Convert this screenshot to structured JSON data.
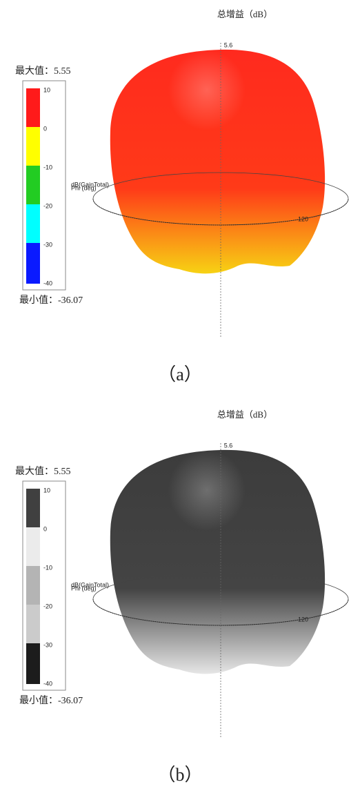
{
  "panels": [
    {
      "title": "总增益（dB）",
      "max_label": "最大值：5.55",
      "min_label": "最小值：-36.07",
      "colorbar_ticks": [
        10,
        0,
        -10,
        -20,
        -30,
        -40
      ],
      "segment_colors": [
        "#ff1a1a",
        "#ffff00",
        "#22cc22",
        "#00ffff",
        "#0a1aff"
      ],
      "pattern_colors": [
        "#ff2a1e",
        "#ff3a18",
        "#f7d214"
      ],
      "z_label": "5.6",
      "ring_label": "120",
      "overlap_labels": [
        "dB(GainTotal)",
        "Phi (deg)"
      ],
      "caption": "（a）"
    },
    {
      "title": "总增益（dB）",
      "max_label": "最大值：5.55",
      "min_label": "最小值：-36.07",
      "colorbar_ticks": [
        10,
        0,
        -10,
        -20,
        -30,
        -40
      ],
      "segment_colors": [
        "#404040",
        "#ebebeb",
        "#b4b4b4",
        "#cbcbcb",
        "#1c1c1c"
      ],
      "pattern_colors": [
        "#3c3c3c",
        "#444444",
        "#e6e6e6"
      ],
      "z_label": "5.6",
      "ring_label": "120",
      "overlap_labels": [
        "dB(GainTotal)",
        "Phi (deg)"
      ],
      "caption": "（b）"
    }
  ]
}
